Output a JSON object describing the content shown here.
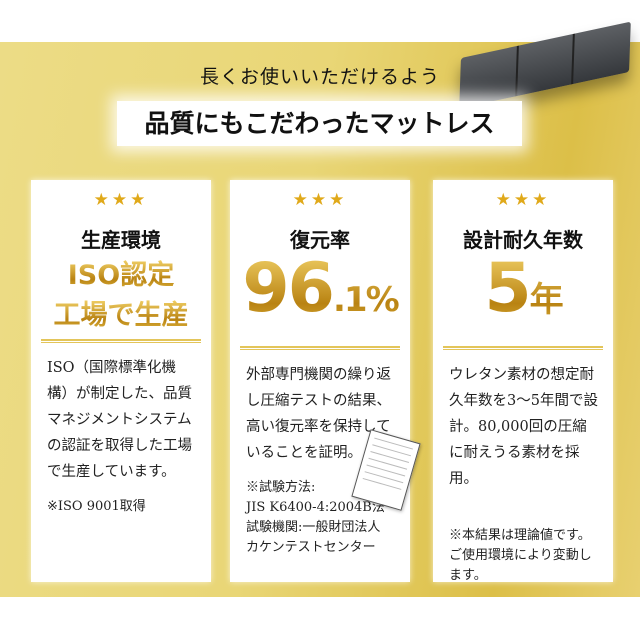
{
  "header": {
    "subtitle": "長くお使いいただけるよう",
    "title": "品質にもこだわったマットレス"
  },
  "cards": [
    {
      "stars": "★★★",
      "heading": "生産環境",
      "highlight_line1": "ISO認定",
      "highlight_line2": "工場で生産",
      "body": "ISO（国際標準化機構）が制定した、品質マネジメントシステムの認証を取得した工場で生産しています。",
      "note": "※ISO 9001取得"
    },
    {
      "stars": "★★★",
      "heading": "復元率",
      "value_main": "96",
      "value_decimal": ".1%",
      "body": "外部専門機関の繰り返し圧縮テストの結果、高い復元率を保持していることを証明。",
      "note_line1": "※試験方法:",
      "note_line2": "JIS K6400-4:2004B法",
      "note_line3": "試験機関:一般財団法人",
      "note_line4": "カケンテストセンター"
    },
    {
      "stars": "★★★",
      "heading": "設計耐久年数",
      "value_main": "5",
      "value_unit": "年",
      "body": "ウレタン素材の想定耐久年数を3～5年間で設計。80,000回の圧縮に耐えうる素材を採用。",
      "note": "※本結果は理論値です。ご使用環境により変動します。"
    }
  ],
  "colors": {
    "gold": "#c9971e",
    "background": "#e9d676"
  }
}
